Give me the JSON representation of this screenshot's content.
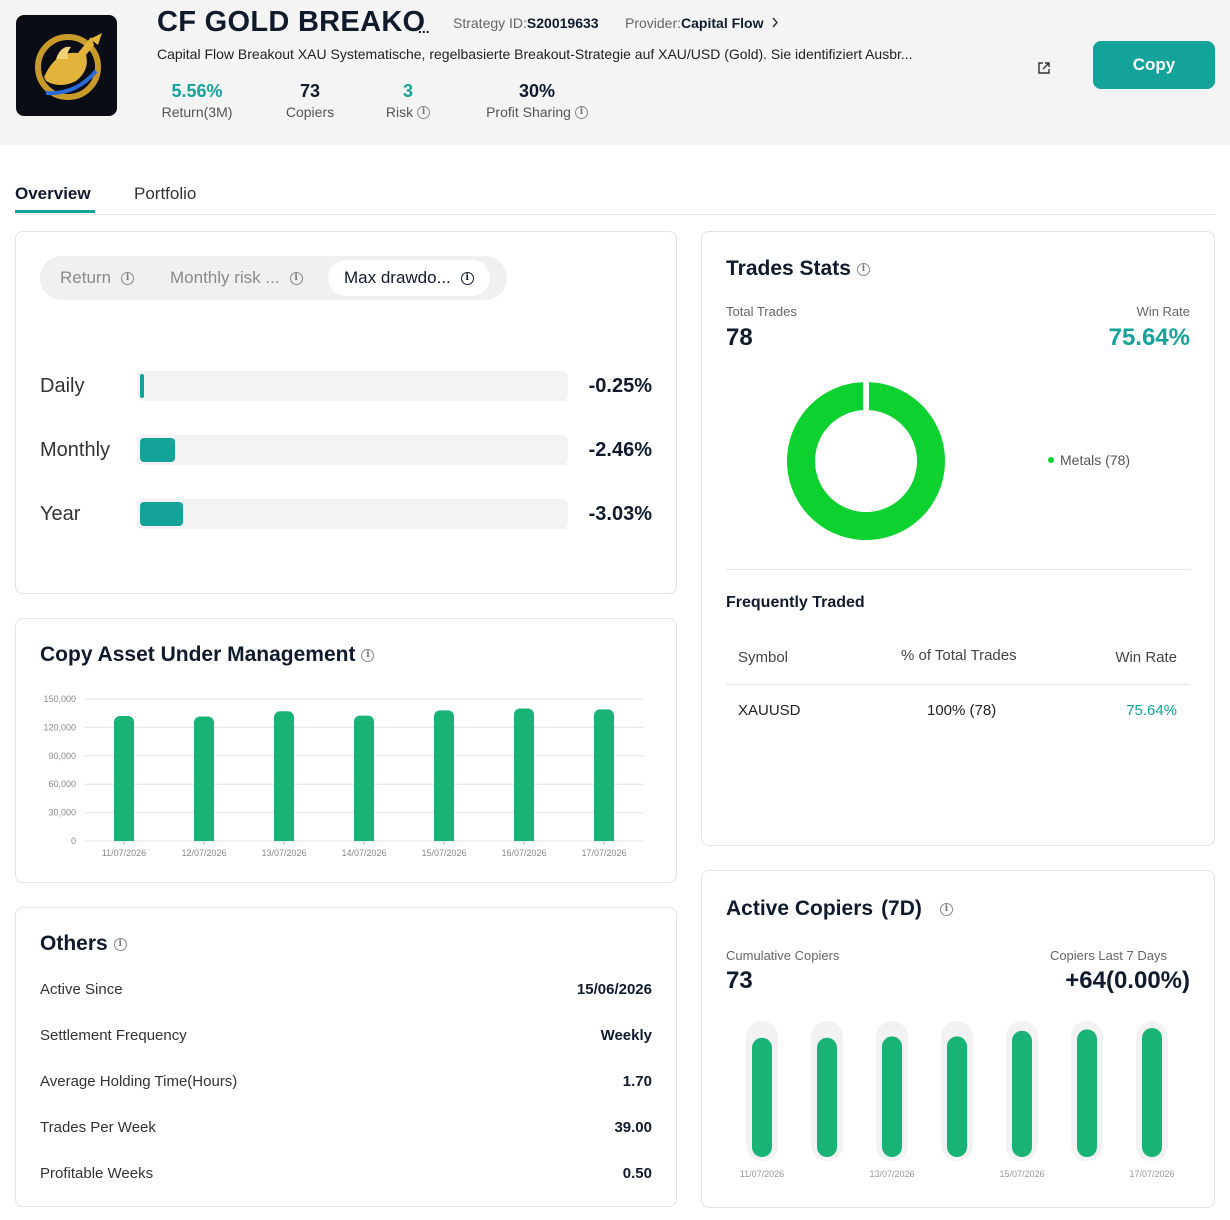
{
  "strategy": {
    "title": "CF GOLD BREAKO",
    "title_ellipsis": "...",
    "strategy_id_label": "Strategy ID:",
    "strategy_id": "S20019633",
    "provider_label": "Provider:",
    "provider": "Capital Flow",
    "description": "Capital Flow Breakout XAU Systematische, regelbasierte Breakout-Strategie auf XAU/USD (Gold). Sie identifiziert Ausbr...",
    "copy_label": "Copy",
    "stats": [
      {
        "value": "5.56%",
        "label": "Return(3M)"
      },
      {
        "value": "73",
        "label": "Copiers"
      },
      {
        "value": "3",
        "label": "Risk"
      },
      {
        "value": "30%",
        "label": "Profit Sharing"
      }
    ]
  },
  "tabs": [
    "Overview",
    "Portfolio"
  ],
  "drawdown": {
    "segments": [
      "Return",
      "Monthly risk ...",
      "Max drawdo..."
    ],
    "rows": [
      {
        "label": "Daily",
        "value": "-0.25%",
        "fill": 0.25
      },
      {
        "label": "Monthly",
        "value": "-2.46%",
        "fill": 2.46
      },
      {
        "label": "Year",
        "value": "-3.03%",
        "fill": 3.03
      }
    ]
  },
  "aum": {
    "title": "Copy Asset Under Management",
    "chart_data": {
      "type": "bar",
      "categories": [
        "11/07/2026",
        "12/07/2026",
        "13/07/2026",
        "14/07/2026",
        "15/07/2026",
        "16/07/2026",
        "17/07/2026"
      ],
      "values": [
        132000,
        131500,
        137000,
        132500,
        138000,
        140000,
        139000
      ],
      "ylim": [
        0,
        150000
      ],
      "yticks": [
        "150,000",
        "120,000",
        "90,000",
        "60,000",
        "30,000",
        "0"
      ],
      "ytick_values": [
        150000,
        120000,
        90000,
        60000,
        30000,
        0
      ],
      "color": "#19b377"
    }
  },
  "others": {
    "title": "Others",
    "rows": [
      {
        "label": "Active Since",
        "value": "15/06/2026"
      },
      {
        "label": "Settlement Frequency",
        "value": "Weekly"
      },
      {
        "label": "Average Holding Time(Hours)",
        "value": "1.70"
      },
      {
        "label": "Trades Per Week",
        "value": "39.00"
      },
      {
        "label": "Profitable Weeks",
        "value": "0.50"
      }
    ]
  },
  "trades": {
    "title": "Trades Stats",
    "total_label": "Total Trades",
    "total": "78",
    "winrate_label": "Win Rate",
    "winrate": "75.64%",
    "legend": "Metals (78)",
    "donut_color": "#0cd12e",
    "freq_title": "Frequently Traded",
    "headers": [
      "Symbol",
      "% of Total Trades",
      "Win Rate"
    ],
    "rows": [
      {
        "symbol": "XAUUSD",
        "pct": "100% (78)",
        "winrate": "75.64%"
      }
    ]
  },
  "copiers": {
    "title": "Active Copiers",
    "period": "(7D)",
    "cum_label": "Cumulative Copiers",
    "cum_value": "73",
    "last7_label": "Copiers Last 7 Days",
    "last7_value": "+64(0.00%)",
    "chart_data": {
      "type": "bar",
      "categories": [
        "11/07/2026",
        "12/07/2026",
        "13/07/2026",
        "14/07/2026",
        "15/07/2026",
        "16/07/2026",
        "17/07/2026"
      ],
      "shown_labels": [
        "11/07/2026",
        "13/07/2026",
        "15/07/2026",
        "17/07/2026"
      ],
      "values": [
        0.88,
        0.88,
        0.89,
        0.89,
        0.93,
        0.94,
        0.95
      ],
      "color": "#19b377"
    }
  },
  "colors": {
    "accent": "#14a39a",
    "bar_green": "#19b377",
    "donut": "#0cd12e"
  }
}
